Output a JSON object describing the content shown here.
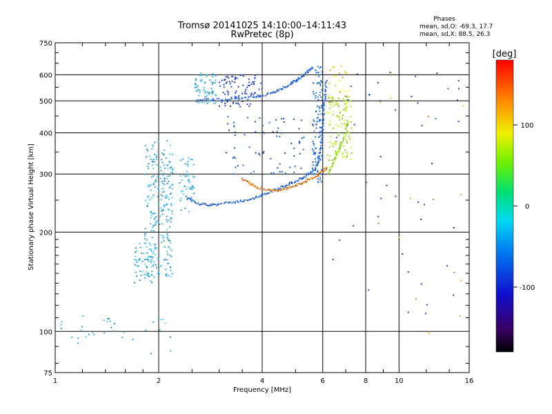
{
  "chart_data": {
    "type": "scatter",
    "title": "Tromsø 20141025 14:10:00–14:11:43",
    "subtitle": "RwPretec (8p)",
    "xlabel": "Frequency [MHz]",
    "ylabel": "Stationary phase Virtual Height [km]",
    "x_scale": "log",
    "y_scale": "log",
    "xlim": [
      1,
      16
    ],
    "ylim": [
      75,
      750
    ],
    "x_ticks": [
      1,
      2,
      4,
      6,
      8,
      10,
      16
    ],
    "y_ticks": [
      75,
      100,
      200,
      300,
      400,
      500,
      600,
      750
    ],
    "x_tick_labels": [
      "1",
      "2",
      "4",
      "6",
      "8",
      "10",
      "16"
    ],
    "y_tick_labels": [
      "75",
      "100",
      "200",
      "300",
      "400",
      "500",
      "600",
      "750"
    ],
    "grid": true,
    "stats": {
      "title": "Phases",
      "line_o": "mean, sd,O:  -69.3,  17.7",
      "line_x": "mean, sd,X:   88.5,  26.3"
    },
    "colorbar": {
      "label": "[deg]",
      "min": -180,
      "max": 180,
      "ticks": [
        100,
        0,
        -100
      ],
      "tick_labels": [
        "100",
        "0",
        "-100"
      ]
    },
    "traces": [
      {
        "name": "O-F-trace",
        "color": "#1e5fd8",
        "points": [
          [
            2.4,
            255
          ],
          [
            2.6,
            244
          ],
          [
            2.8,
            242
          ],
          [
            3.0,
            243
          ],
          [
            3.3,
            246
          ],
          [
            3.6,
            250
          ],
          [
            3.9,
            256
          ],
          [
            4.2,
            264
          ],
          [
            4.5,
            272
          ],
          [
            4.8,
            280
          ],
          [
            5.1,
            288
          ],
          [
            5.4,
            297
          ],
          [
            5.7,
            310
          ],
          [
            5.85,
            330
          ],
          [
            5.95,
            370
          ],
          [
            6.0,
            420
          ],
          [
            6.05,
            470
          ],
          [
            6.1,
            520
          ],
          [
            6.15,
            580
          ]
        ]
      },
      {
        "name": "O-upper-trace",
        "color": "#1e5fd8",
        "points": [
          [
            2.6,
            505
          ],
          [
            3.0,
            505
          ],
          [
            3.4,
            508
          ],
          [
            3.8,
            514
          ],
          [
            4.2,
            525
          ],
          [
            4.5,
            540
          ],
          [
            4.8,
            560
          ],
          [
            5.0,
            575
          ],
          [
            5.2,
            590
          ],
          [
            5.4,
            610
          ],
          [
            5.6,
            630
          ]
        ]
      },
      {
        "name": "X-F-trace",
        "color": "#e07a1e",
        "points": [
          [
            3.5,
            290
          ],
          [
            3.7,
            280
          ],
          [
            3.9,
            273
          ],
          [
            4.2,
            268
          ],
          [
            4.5,
            268
          ],
          [
            4.8,
            272
          ],
          [
            5.1,
            279
          ],
          [
            5.4,
            286
          ],
          [
            5.7,
            295
          ],
          [
            6.0,
            305
          ],
          [
            6.2,
            315
          ]
        ]
      },
      {
        "name": "X-green-trace",
        "color": "#8ed820",
        "points": [
          [
            6.2,
            300
          ],
          [
            6.4,
            320
          ],
          [
            6.6,
            345
          ],
          [
            6.8,
            370
          ],
          [
            7.0,
            400
          ],
          [
            7.1,
            440
          ]
        ]
      }
    ],
    "clusters": [
      {
        "name": "E-spread-2mhz",
        "color": "#3aaee8",
        "x": [
          1.82,
          2.2
        ],
        "y": [
          145,
          380
        ],
        "n": 260
      },
      {
        "name": "E-spread-lower",
        "color": "#3aaee8",
        "x": [
          1.7,
          1.95
        ],
        "y": [
          140,
          185
        ],
        "n": 45
      },
      {
        "name": "E-spread-2p4",
        "color": "#3aaee8",
        "x": [
          2.3,
          2.55
        ],
        "y": [
          230,
          340
        ],
        "n": 50
      },
      {
        "name": "upper-left-blob",
        "color": "#3aaee8",
        "x": [
          2.55,
          2.95
        ],
        "y": [
          490,
          610
        ],
        "n": 70
      },
      {
        "name": "upper-band-blue",
        "color": "#1a3fc8",
        "x": [
          3.0,
          4.0
        ],
        "y": [
          480,
          600
        ],
        "n": 90
      },
      {
        "name": "mid-spread",
        "color": "#1a5ad0",
        "x": [
          3.1,
          5.3
        ],
        "y": [
          300,
          450
        ],
        "n": 70
      },
      {
        "name": "vertical-6mhz",
        "color": "#1e6ee0",
        "x": [
          5.6,
          6.0
        ],
        "y": [
          280,
          640
        ],
        "n": 110
      },
      {
        "name": "green-cluster",
        "color": "#a6e020",
        "x": [
          6.2,
          7.3
        ],
        "y": [
          330,
          520
        ],
        "n": 110
      },
      {
        "name": "yellow-cluster",
        "color": "#d8e020",
        "x": [
          6.2,
          7.1
        ],
        "y": [
          450,
          640
        ],
        "n": 30
      },
      {
        "name": "low-left",
        "color": "#3aaee8",
        "x": [
          1.0,
          1.5
        ],
        "y": [
          88,
          112
        ],
        "n": 22
      },
      {
        "name": "low-mid",
        "color": "#3aaee8",
        "x": [
          1.5,
          2.3
        ],
        "y": [
          84,
          110
        ],
        "n": 12
      },
      {
        "name": "right-scatter",
        "color": "#1a3fc8",
        "x": [
          6.4,
          15.5
        ],
        "y": [
          110,
          640
        ],
        "n": 45
      },
      {
        "name": "right-warm",
        "color": "#e0a020",
        "x": [
          8.0,
          15.5
        ],
        "y": [
          90,
          650
        ],
        "n": 16
      }
    ]
  }
}
